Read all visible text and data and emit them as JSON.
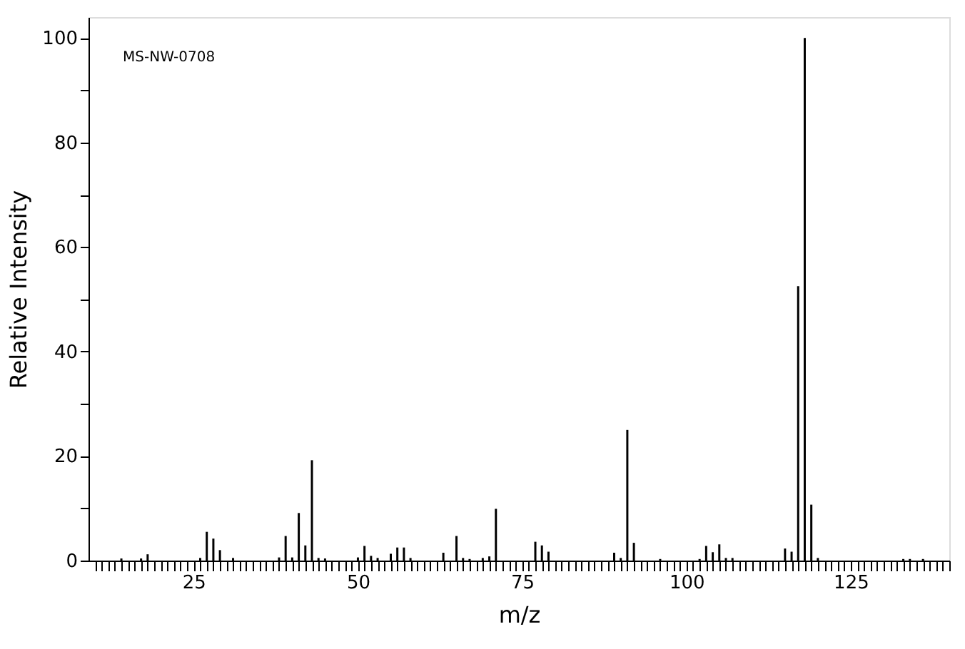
{
  "chart_data": {
    "type": "bar",
    "xlabel": "m/z",
    "ylabel": "Relative Intensity",
    "annotations": [
      {
        "text": "MS-NW-0708"
      }
    ],
    "x": [
      14,
      17,
      18,
      26,
      27,
      28,
      29,
      31,
      38,
      39,
      40,
      41,
      42,
      43,
      44,
      45,
      50,
      51,
      52,
      53,
      55,
      56,
      57,
      58,
      63,
      65,
      66,
      67,
      69,
      70,
      71,
      77,
      78,
      79,
      89,
      90,
      91,
      92,
      96,
      102,
      103,
      104,
      105,
      106,
      107,
      115,
      116,
      117,
      118,
      119,
      120,
      133,
      134,
      136
    ],
    "series": [
      {
        "color": "#000000",
        "values": [
          0.4,
          0.4,
          1.2,
          0.5,
          5.5,
          4.2,
          2,
          0.5,
          0.6,
          4.7,
          0.6,
          9.1,
          2.9,
          19.2,
          0.5,
          0.4,
          0.6,
          2.8,
          0.9,
          0.5,
          1.3,
          2.5,
          2.5,
          0.5,
          1.5,
          4.7,
          0.5,
          0.3,
          0.5,
          0.8,
          9.9,
          3.6,
          2.9,
          1.7,
          1.5,
          0.5,
          25,
          3.4,
          0.3,
          0.3,
          2.8,
          1.6,
          3.1,
          0.5,
          0.5,
          2.3,
          1.7,
          52.5,
          100,
          10.7,
          0.5,
          0.3,
          0.3,
          0.3
        ]
      }
    ],
    "xlim": [
      9,
      140
    ],
    "ylim": [
      0,
      104
    ],
    "xticks": [
      25,
      50,
      75,
      100,
      125
    ],
    "yticks": [
      0,
      20,
      40,
      60,
      80,
      100,
      {
        "value": 10,
        "label": null
      },
      {
        "value": 30,
        "label": null
      },
      {
        "value": 50,
        "label": null
      },
      {
        "value": 70,
        "label": null
      },
      {
        "value": 90,
        "label": null
      }
    ],
    "grid": false
  }
}
